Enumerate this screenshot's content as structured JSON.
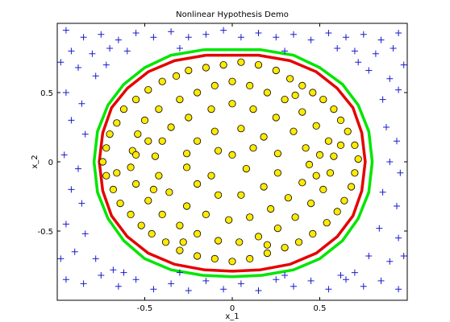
{
  "chart_data": {
    "type": "scatter",
    "title": "Nonlinear Hypothesis Demo",
    "xlabel": "x_1",
    "ylabel": "x_2",
    "xlim": [
      -1.0,
      1.0
    ],
    "ylim": [
      -1.0,
      1.0
    ],
    "xticks": [
      -0.5,
      0,
      0.5
    ],
    "xtick_labels": [
      "-0.5",
      "0",
      "0.5"
    ],
    "yticks": [
      -0.5,
      0,
      0.5
    ],
    "ytick_labels": [
      "-0.5",
      "0",
      "0.5"
    ],
    "grid": false,
    "series": [
      {
        "marker": "circle",
        "color": "#ffea00",
        "edge_color": "#000000",
        "points": [
          [
            -0.62,
            0.38
          ],
          [
            -0.55,
            0.45
          ],
          [
            -0.48,
            0.52
          ],
          [
            -0.4,
            0.58
          ],
          [
            -0.32,
            0.62
          ],
          [
            -0.25,
            0.66
          ],
          [
            -0.15,
            0.68
          ],
          [
            -0.05,
            0.7
          ],
          [
            0.05,
            0.72
          ],
          [
            0.15,
            0.7
          ],
          [
            0.25,
            0.66
          ],
          [
            0.33,
            0.6
          ],
          [
            0.4,
            0.55
          ],
          [
            0.46,
            0.5
          ],
          [
            0.52,
            0.45
          ],
          [
            0.58,
            0.38
          ],
          [
            0.62,
            0.3
          ],
          [
            0.66,
            0.22
          ],
          [
            0.7,
            0.12
          ],
          [
            0.72,
            0.02
          ],
          [
            0.7,
            -0.08
          ],
          [
            0.68,
            -0.18
          ],
          [
            0.64,
            -0.28
          ],
          [
            0.6,
            -0.36
          ],
          [
            0.54,
            -0.44
          ],
          [
            0.46,
            -0.52
          ],
          [
            0.38,
            -0.58
          ],
          [
            0.3,
            -0.62
          ],
          [
            0.2,
            -0.66
          ],
          [
            0.1,
            -0.7
          ],
          [
            0.0,
            -0.72
          ],
          [
            -0.1,
            -0.7
          ],
          [
            -0.2,
            -0.68
          ],
          [
            -0.3,
            -0.64
          ],
          [
            -0.38,
            -0.58
          ],
          [
            -0.46,
            -0.52
          ],
          [
            -0.52,
            -0.46
          ],
          [
            -0.58,
            -0.38
          ],
          [
            -0.64,
            -0.3
          ],
          [
            -0.68,
            -0.2
          ],
          [
            -0.72,
            -0.1
          ],
          [
            -0.74,
            0.0
          ],
          [
            -0.72,
            0.1
          ],
          [
            -0.7,
            0.2
          ],
          [
            -0.66,
            0.28
          ],
          [
            -0.5,
            0.3
          ],
          [
            -0.42,
            0.38
          ],
          [
            -0.3,
            0.45
          ],
          [
            -0.2,
            0.5
          ],
          [
            -0.1,
            0.55
          ],
          [
            0.0,
            0.58
          ],
          [
            0.1,
            0.55
          ],
          [
            0.2,
            0.5
          ],
          [
            0.3,
            0.45
          ],
          [
            0.4,
            0.36
          ],
          [
            0.48,
            0.26
          ],
          [
            0.55,
            0.15
          ],
          [
            0.58,
            0.04
          ],
          [
            0.56,
            -0.08
          ],
          [
            0.52,
            -0.2
          ],
          [
            0.45,
            -0.3
          ],
          [
            0.36,
            -0.4
          ],
          [
            0.26,
            -0.48
          ],
          [
            0.15,
            -0.54
          ],
          [
            0.04,
            -0.58
          ],
          [
            -0.08,
            -0.57
          ],
          [
            -0.2,
            -0.52
          ],
          [
            -0.3,
            -0.46
          ],
          [
            -0.4,
            -0.38
          ],
          [
            -0.48,
            -0.28
          ],
          [
            -0.55,
            -0.16
          ],
          [
            -0.58,
            -0.04
          ],
          [
            -0.57,
            0.08
          ],
          [
            -0.54,
            0.2
          ],
          [
            -0.35,
            0.25
          ],
          [
            -0.25,
            0.32
          ],
          [
            -0.12,
            0.38
          ],
          [
            0.0,
            0.42
          ],
          [
            0.12,
            0.38
          ],
          [
            0.25,
            0.32
          ],
          [
            0.35,
            0.22
          ],
          [
            0.42,
            0.1
          ],
          [
            0.44,
            -0.02
          ],
          [
            0.4,
            -0.15
          ],
          [
            0.32,
            -0.26
          ],
          [
            0.22,
            -0.34
          ],
          [
            0.1,
            -0.4
          ],
          [
            -0.02,
            -0.42
          ],
          [
            -0.15,
            -0.38
          ],
          [
            -0.26,
            -0.32
          ],
          [
            -0.36,
            -0.22
          ],
          [
            -0.42,
            -0.1
          ],
          [
            -0.44,
            0.04
          ],
          [
            -0.4,
            0.15
          ],
          [
            -0.2,
            0.15
          ],
          [
            -0.1,
            0.22
          ],
          [
            0.05,
            0.24
          ],
          [
            0.18,
            0.18
          ],
          [
            0.26,
            0.06
          ],
          [
            0.26,
            -0.08
          ],
          [
            0.18,
            -0.18
          ],
          [
            0.05,
            -0.24
          ],
          [
            -0.08,
            -0.24
          ],
          [
            -0.2,
            -0.16
          ],
          [
            -0.26,
            -0.04
          ],
          [
            -0.26,
            0.06
          ],
          [
            0.0,
            0.05
          ],
          [
            0.08,
            -0.05
          ],
          [
            -0.08,
            0.08
          ],
          [
            0.12,
            0.1
          ],
          [
            -0.12,
            -0.1
          ],
          [
            -0.55,
            0.05
          ],
          [
            -0.48,
            0.15
          ],
          [
            -0.45,
            -0.2
          ],
          [
            0.5,
            0.05
          ],
          [
            0.48,
            -0.1
          ],
          [
            0.36,
            0.48
          ],
          [
            -0.28,
            -0.58
          ],
          [
            0.2,
            -0.6
          ],
          [
            0.62,
            0.12
          ],
          [
            -0.66,
            -0.08
          ]
        ]
      },
      {
        "marker": "plus",
        "color": "#1a1acc",
        "points": [
          [
            -0.95,
            0.95
          ],
          [
            -0.85,
            0.9
          ],
          [
            -0.75,
            0.92
          ],
          [
            -0.65,
            0.88
          ],
          [
            -0.55,
            0.93
          ],
          [
            -0.45,
            0.9
          ],
          [
            -0.35,
            0.94
          ],
          [
            -0.25,
            0.9
          ],
          [
            -0.15,
            0.92
          ],
          [
            -0.05,
            0.95
          ],
          [
            0.05,
            0.9
          ],
          [
            0.15,
            0.93
          ],
          [
            0.25,
            0.9
          ],
          [
            0.35,
            0.92
          ],
          [
            0.45,
            0.88
          ],
          [
            0.55,
            0.93
          ],
          [
            0.65,
            0.9
          ],
          [
            0.75,
            0.92
          ],
          [
            0.85,
            0.88
          ],
          [
            0.95,
            0.93
          ],
          [
            -0.92,
            0.8
          ],
          [
            -0.8,
            0.78
          ],
          [
            -0.7,
            0.82
          ],
          [
            0.7,
            0.8
          ],
          [
            0.82,
            0.78
          ],
          [
            0.92,
            0.82
          ],
          [
            -0.88,
            0.68
          ],
          [
            -0.78,
            0.62
          ],
          [
            0.78,
            0.66
          ],
          [
            0.9,
            0.6
          ],
          [
            -0.95,
            0.5
          ],
          [
            -0.86,
            0.42
          ],
          [
            0.86,
            0.45
          ],
          [
            0.95,
            0.52
          ],
          [
            -0.92,
            0.3
          ],
          [
            -0.84,
            0.2
          ],
          [
            0.88,
            0.25
          ],
          [
            0.94,
            0.15
          ],
          [
            -0.96,
            0.05
          ],
          [
            -0.88,
            -0.05
          ],
          [
            0.9,
            0.0
          ],
          [
            0.96,
            -0.08
          ],
          [
            -0.92,
            -0.2
          ],
          [
            -0.86,
            -0.3
          ],
          [
            0.86,
            -0.22
          ],
          [
            0.94,
            -0.32
          ],
          [
            -0.95,
            -0.45
          ],
          [
            -0.84,
            -0.52
          ],
          [
            0.84,
            -0.48
          ],
          [
            0.95,
            -0.55
          ],
          [
            -0.9,
            -0.65
          ],
          [
            -0.78,
            -0.7
          ],
          [
            0.78,
            -0.68
          ],
          [
            0.9,
            -0.72
          ],
          [
            -0.95,
            -0.85
          ],
          [
            -0.85,
            -0.88
          ],
          [
            -0.75,
            -0.82
          ],
          [
            -0.65,
            -0.9
          ],
          [
            -0.55,
            -0.85
          ],
          [
            -0.45,
            -0.92
          ],
          [
            -0.35,
            -0.88
          ],
          [
            -0.25,
            -0.93
          ],
          [
            -0.15,
            -0.86
          ],
          [
            -0.05,
            -0.92
          ],
          [
            0.05,
            -0.88
          ],
          [
            0.15,
            -0.93
          ],
          [
            0.25,
            -0.85
          ],
          [
            0.35,
            -0.9
          ],
          [
            0.45,
            -0.86
          ],
          [
            0.55,
            -0.92
          ],
          [
            0.65,
            -0.85
          ],
          [
            0.75,
            -0.9
          ],
          [
            0.85,
            -0.86
          ],
          [
            0.95,
            -0.92
          ],
          [
            -0.72,
            0.7
          ],
          [
            0.72,
            0.72
          ],
          [
            -0.68,
            -0.78
          ],
          [
            0.7,
            -0.8
          ],
          [
            -0.98,
            0.72
          ],
          [
            0.98,
            0.7
          ],
          [
            -0.98,
            -0.7
          ],
          [
            0.98,
            -0.68
          ],
          [
            -0.6,
            0.8
          ],
          [
            0.6,
            0.82
          ],
          [
            -0.62,
            -0.8
          ],
          [
            0.62,
            -0.82
          ],
          [
            -0.3,
            0.82
          ],
          [
            0.3,
            0.8
          ],
          [
            -0.3,
            -0.8
          ],
          [
            0.3,
            -0.82
          ]
        ]
      }
    ],
    "boundaries": [
      {
        "color": "#00e600",
        "points": [
          [
            -0.16,
            0.81
          ],
          [
            0.16,
            0.81
          ],
          [
            0.35,
            0.77
          ],
          [
            0.5,
            0.68
          ],
          [
            0.63,
            0.56
          ],
          [
            0.72,
            0.41
          ],
          [
            0.78,
            0.22
          ],
          [
            0.8,
            0.0
          ],
          [
            0.78,
            -0.22
          ],
          [
            0.72,
            -0.41
          ],
          [
            0.63,
            -0.57
          ],
          [
            0.5,
            -0.7
          ],
          [
            0.35,
            -0.78
          ],
          [
            0.17,
            -0.82
          ],
          [
            0.0,
            -0.83
          ],
          [
            -0.17,
            -0.82
          ],
          [
            -0.35,
            -0.78
          ],
          [
            -0.5,
            -0.7
          ],
          [
            -0.62,
            -0.57
          ],
          [
            -0.71,
            -0.41
          ],
          [
            -0.77,
            -0.22
          ],
          [
            -0.79,
            0.0
          ],
          [
            -0.77,
            0.22
          ],
          [
            -0.71,
            0.41
          ],
          [
            -0.62,
            0.56
          ],
          [
            -0.5,
            0.68
          ],
          [
            -0.35,
            0.77
          ],
          [
            -0.16,
            0.81
          ]
        ]
      },
      {
        "color": "#e60000",
        "points": [
          [
            -0.15,
            0.77
          ],
          [
            0.15,
            0.77
          ],
          [
            0.33,
            0.73
          ],
          [
            0.48,
            0.65
          ],
          [
            0.6,
            0.53
          ],
          [
            0.69,
            0.39
          ],
          [
            0.74,
            0.21
          ],
          [
            0.76,
            0.0
          ],
          [
            0.74,
            -0.21
          ],
          [
            0.69,
            -0.39
          ],
          [
            0.6,
            -0.54
          ],
          [
            0.48,
            -0.66
          ],
          [
            0.33,
            -0.74
          ],
          [
            0.16,
            -0.78
          ],
          [
            0.0,
            -0.79
          ],
          [
            -0.16,
            -0.78
          ],
          [
            -0.33,
            -0.74
          ],
          [
            -0.48,
            -0.66
          ],
          [
            -0.6,
            -0.54
          ],
          [
            -0.69,
            -0.39
          ],
          [
            -0.74,
            -0.21
          ],
          [
            -0.76,
            0.0
          ],
          [
            -0.74,
            0.21
          ],
          [
            -0.69,
            0.39
          ],
          [
            -0.6,
            0.53
          ],
          [
            -0.48,
            0.65
          ],
          [
            -0.33,
            0.73
          ],
          [
            -0.15,
            0.77
          ]
        ]
      }
    ]
  }
}
